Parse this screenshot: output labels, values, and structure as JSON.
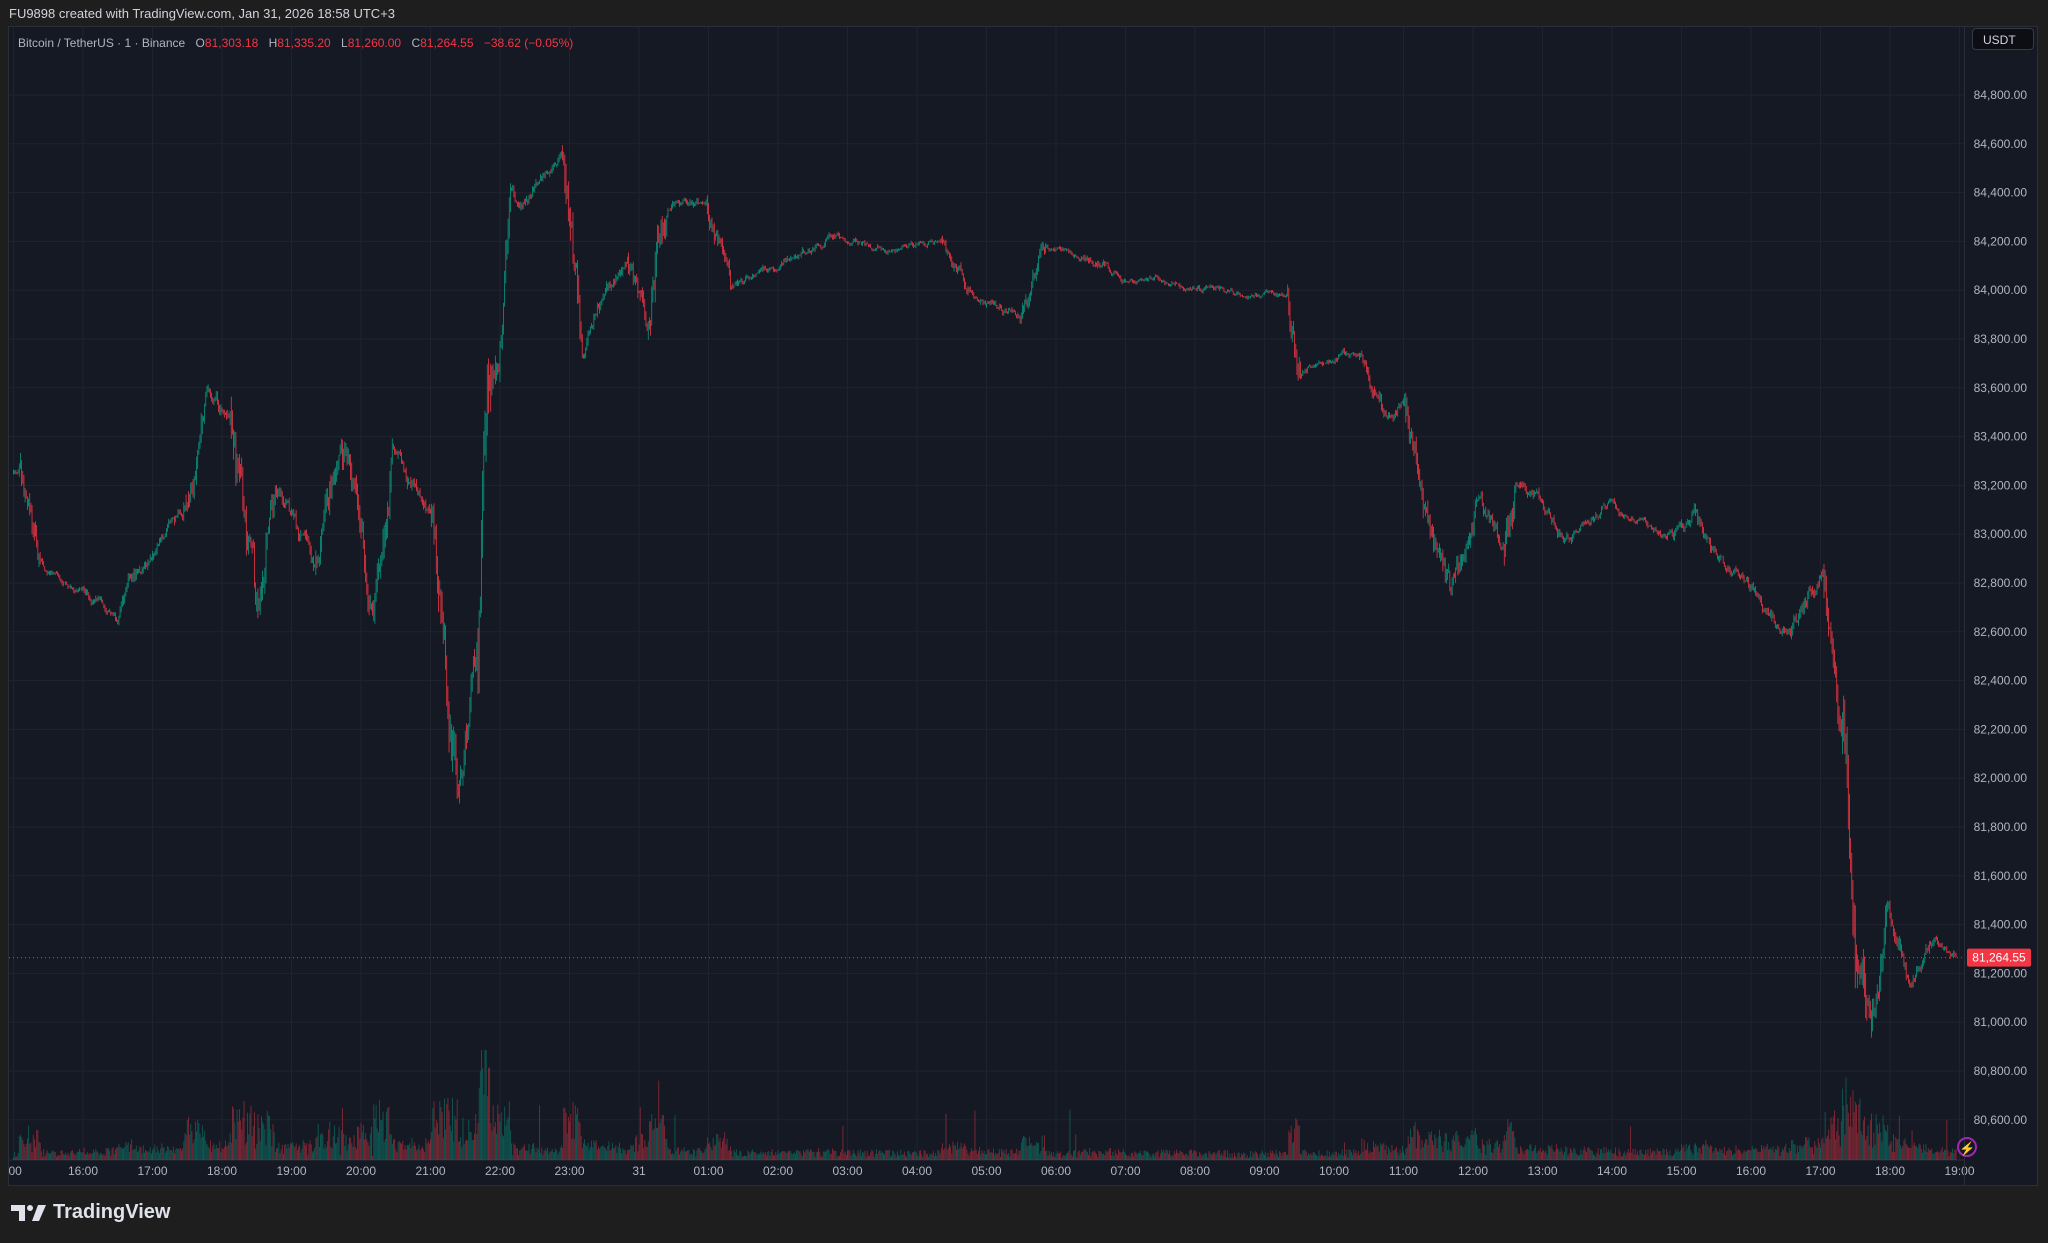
{
  "header": {
    "attribution": "FU9898 created with TradingView.com, Jan 31, 2026 18:58 UTC+3"
  },
  "legend": {
    "symbol": "Bitcoin / TetherUS · 1 · Binance",
    "o_label": "O",
    "o": "81,303.18",
    "h_label": "H",
    "h": "81,335.20",
    "l_label": "L",
    "l": "81,260.00",
    "c_label": "C",
    "c": "81,264.55",
    "change": "−38.62 (−0.05%)"
  },
  "currency_button": "USDT",
  "footer": {
    "brand": "TradingView"
  },
  "colors": {
    "up": "#089981",
    "down": "#f23645",
    "background": "#151924",
    "grid": "#1f2330"
  },
  "icons": {
    "bolt": "lightning-icon"
  },
  "chart_data": {
    "type": "candlestick",
    "interval": "1 minute",
    "title": "Bitcoin / TetherUS · 1 · Binance",
    "y_ticks": [
      "84,800.00",
      "84,600.00",
      "84,400.00",
      "84,200.00",
      "84,000.00",
      "83,800.00",
      "83,600.00",
      "83,400.00",
      "83,200.00",
      "83,000.00",
      "82,800.00",
      "82,600.00",
      "82,400.00",
      "82,200.00",
      "82,000.00",
      "81,800.00",
      "81,600.00",
      "81,400.00",
      "81,200.00",
      "81,000.00",
      "80,800.00",
      "80,600.00"
    ],
    "ylim": [
      80450,
      84950
    ],
    "x_ticks": [
      ":00",
      "16:00",
      "17:00",
      "18:00",
      "19:00",
      "20:00",
      "21:00",
      "22:00",
      "23:00",
      "31",
      "01:00",
      "02:00",
      "03:00",
      "04:00",
      "05:00",
      "06:00",
      "07:00",
      "08:00",
      "09:00",
      "10:00",
      "11:00",
      "12:00",
      "13:00",
      "14:00",
      "15:00",
      "16:00",
      "17:00",
      "18:00",
      "19:00"
    ],
    "last_price": 81264.55,
    "last_price_label": "81,264.55",
    "grid": true,
    "volume": true,
    "approx_close_path": [
      [
        "01-30 15:05",
        83259
      ],
      [
        "01-30 15:23",
        82831
      ],
      [
        "01-30 15:57",
        82777
      ],
      [
        "01-30 16:30",
        82670
      ],
      [
        "01-30 16:53",
        82884
      ],
      [
        "01-30 17:27",
        83099
      ],
      [
        "01-30 17:46",
        83634
      ],
      [
        "01-30 18:07",
        83473
      ],
      [
        "01-30 18:29",
        82564
      ],
      [
        "01-30 18:46",
        83206
      ],
      [
        "01-30 19:20",
        82831
      ],
      [
        "01-30 19:42",
        83420
      ],
      [
        "01-30 20:10",
        82724
      ],
      [
        "01-30 20:27",
        83420
      ],
      [
        "01-30 21:01",
        83045
      ],
      [
        "01-30 21:24",
        81975
      ],
      [
        "01-30 21:41",
        82510
      ],
      [
        "01-30 21:52",
        83580
      ],
      [
        "01-30 22:09",
        84276
      ],
      [
        "01-30 22:31",
        84437
      ],
      [
        "01-30 22:54",
        84543
      ],
      [
        "01-30 23:11",
        83794
      ],
      [
        "01-30 23:28",
        83955
      ],
      [
        "01-30 23:50",
        84115
      ],
      [
        "01-31 00:07",
        83848
      ],
      [
        "01-31 00:24",
        84437
      ],
      [
        "01-31 00:58",
        84329
      ],
      [
        "01-31 01:20",
        84008
      ],
      [
        "01-31 02:05",
        84115
      ],
      [
        "01-31 02:51",
        84222
      ],
      [
        "01-31 03:36",
        84169
      ],
      [
        "01-31 04:21",
        84195
      ],
      [
        "01-31 04:44",
        84008
      ],
      [
        "01-31 05:29",
        83874
      ],
      [
        "01-31 05:51",
        84169
      ],
      [
        "01-31 06:25",
        84142
      ],
      [
        "01-31 06:59",
        84062
      ],
      [
        "01-31 07:44",
        84035
      ],
      [
        "01-31 08:29",
        83981
      ],
      [
        "01-31 09:20",
        83981
      ],
      [
        "01-31 09:31",
        83687
      ],
      [
        "01-31 10:22",
        83740
      ],
      [
        "01-31 10:44",
        83473
      ],
      [
        "01-31 11:01",
        83553
      ],
      [
        "01-31 11:18",
        83152
      ],
      [
        "01-31 11:41",
        82724
      ],
      [
        "01-31 12:04",
        83152
      ],
      [
        "01-31 12:26",
        82938
      ],
      [
        "01-31 12:37",
        83259
      ],
      [
        "01-31 13:22",
        82991
      ],
      [
        "01-31 13:56",
        83125
      ],
      [
        "01-31 14:53",
        82991
      ],
      [
        "01-31 15:10",
        83099
      ],
      [
        "01-31 15:26",
        82938
      ],
      [
        "01-31 16:00",
        82777
      ],
      [
        "01-31 16:34",
        82564
      ],
      [
        "01-31 17:02",
        82884
      ],
      [
        "01-31 17:19",
        82296
      ],
      [
        "01-31 17:31",
        81440
      ],
      [
        "01-31 17:42",
        80905
      ],
      [
        "01-31 17:59",
        81440
      ],
      [
        "01-31 18:16",
        81172
      ],
      [
        "01-31 18:38",
        81333
      ],
      [
        "01-31 18:57",
        81264.55
      ]
    ]
  }
}
